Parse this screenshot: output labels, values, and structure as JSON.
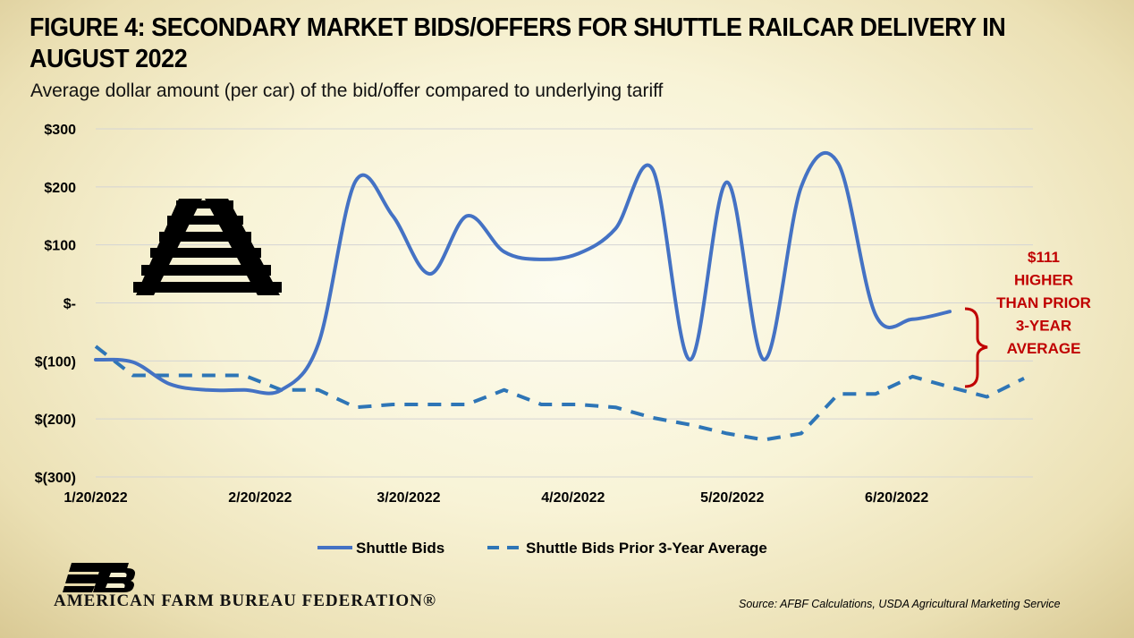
{
  "header": {
    "title": "FIGURE 4: SECONDARY MARKET BIDS/OFFERS FOR SHUTTLE RAILCAR DELIVERY IN AUGUST 2022",
    "subtitle": "Average dollar amount (per car) of the bid/offer compared to underlying tariff"
  },
  "chart_data": {
    "type": "line",
    "x_tick_labels": [
      "1/20/2022",
      "2/20/2022",
      "3/20/2022",
      "4/20/2022",
      "5/20/2022",
      "6/20/2022"
    ],
    "y_tick_labels": [
      "$300",
      "$200",
      "$100",
      "$-",
      "$(100)",
      "$(200)",
      "$(300)"
    ],
    "ylim": [
      -300,
      300
    ],
    "grid": "horizontal",
    "legend_position": "bottom",
    "series": [
      {
        "name": "Shuttle Bids",
        "color": "#4472c4",
        "style": "solid",
        "x": [
          "2022-01-20",
          "2022-01-27",
          "2022-02-03",
          "2022-02-10",
          "2022-02-17",
          "2022-02-24",
          "2022-03-03",
          "2022-03-10",
          "2022-03-17",
          "2022-03-24",
          "2022-03-31",
          "2022-04-07",
          "2022-04-14",
          "2022-04-21",
          "2022-04-28",
          "2022-05-05",
          "2022-05-12",
          "2022-05-19",
          "2022-05-26",
          "2022-06-02",
          "2022-06-09",
          "2022-06-16",
          "2022-06-23",
          "2022-06-30"
        ],
        "values": [
          -98,
          -102,
          -140,
          -150,
          -150,
          -150,
          -70,
          210,
          150,
          50,
          150,
          88,
          75,
          85,
          128,
          230,
          -98,
          208,
          -98,
          200,
          240,
          -20,
          -28,
          -15
        ]
      },
      {
        "name": "Shuttle Bids Prior 3-Year Average",
        "color": "#2e75b6",
        "style": "dashed",
        "x": [
          "2022-01-20",
          "2022-01-27",
          "2022-02-03",
          "2022-02-10",
          "2022-02-17",
          "2022-02-24",
          "2022-03-03",
          "2022-03-10",
          "2022-03-17",
          "2022-03-24",
          "2022-03-31",
          "2022-04-07",
          "2022-04-14",
          "2022-04-21",
          "2022-04-28",
          "2022-05-05",
          "2022-05-12",
          "2022-05-19",
          "2022-05-26",
          "2022-06-02",
          "2022-06-09",
          "2022-06-16",
          "2022-06-23",
          "2022-06-30",
          "2022-07-07",
          "2022-07-14"
        ],
        "values": [
          -75,
          -125,
          -125,
          -125,
          -125,
          -150,
          -150,
          -180,
          -175,
          -175,
          -175,
          -150,
          -175,
          -175,
          -180,
          -198,
          -210,
          -225,
          -236,
          -225,
          -157,
          -157,
          -127,
          -145,
          -162,
          -130
        ]
      }
    ]
  },
  "annotation": {
    "lines": [
      "$111",
      "HIGHER",
      "THAN PRIOR",
      "3-YEAR",
      "AVERAGE"
    ],
    "color": "#c00000"
  },
  "footer": {
    "organization": "AMERICAN FARM BUREAU FEDERATION®",
    "logo_text": "FB",
    "source": "Source: AFBF Calculations, USDA Agricultural Marketing Service"
  }
}
